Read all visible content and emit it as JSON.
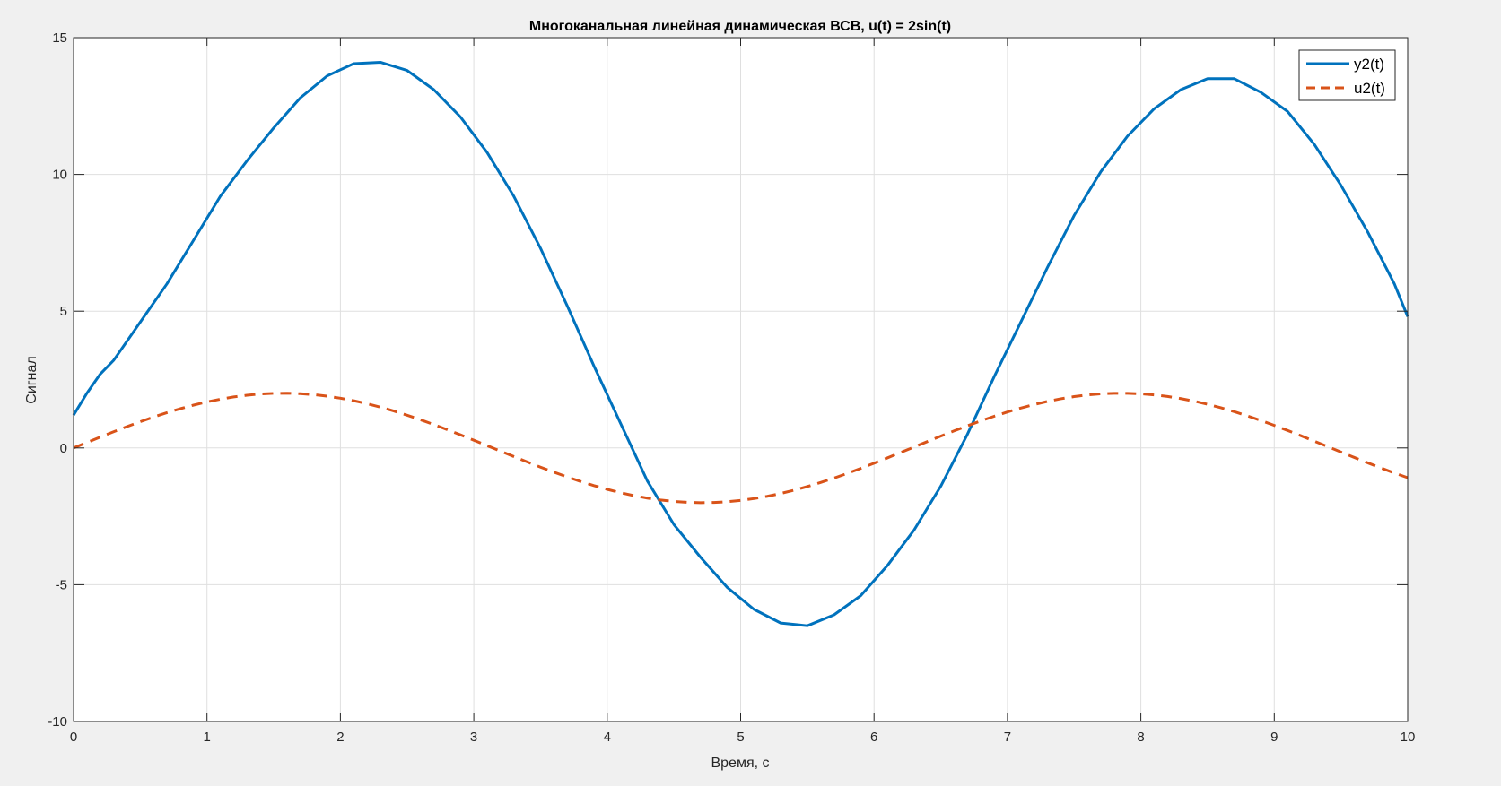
{
  "chart_data": {
    "type": "line",
    "title": "Многоканальная линейная динамическая ВСВ, u(t) = 2sin(t)",
    "xlabel": "Время, с",
    "ylabel": "Сигнал",
    "xlim": [
      0,
      10
    ],
    "ylim": [
      -10,
      15
    ],
    "x_ticks": [
      "0",
      "1",
      "2",
      "3",
      "4",
      "5",
      "6",
      "7",
      "8",
      "9",
      "10"
    ],
    "y_ticks": [
      "-10",
      "-5",
      "0",
      "5",
      "10",
      "15"
    ],
    "grid": true,
    "legend_position": "top-right",
    "series": [
      {
        "name": "y2(t)",
        "color": "#0072BD",
        "line_style": "solid",
        "x": [
          0,
          0.1,
          0.2,
          0.3,
          0.5,
          0.7,
          0.9,
          1.1,
          1.3,
          1.5,
          1.7,
          1.9,
          2.1,
          2.3,
          2.5,
          2.7,
          2.9,
          3.1,
          3.3,
          3.5,
          3.7,
          3.9,
          4.1,
          4.3,
          4.5,
          4.7,
          4.9,
          5.1,
          5.3,
          5.5,
          5.7,
          5.9,
          6.1,
          6.3,
          6.5,
          6.7,
          6.9,
          7.1,
          7.3,
          7.5,
          7.7,
          7.9,
          8.1,
          8.3,
          8.5,
          8.7,
          8.9,
          9.1,
          9.3,
          9.5,
          9.7,
          9.9,
          10
        ],
        "y": [
          1.2,
          2.0,
          2.7,
          3.2,
          4.6,
          6.0,
          7.6,
          9.2,
          10.5,
          11.7,
          12.8,
          13.6,
          14.05,
          14.1,
          13.8,
          13.1,
          12.1,
          10.8,
          9.2,
          7.3,
          5.2,
          3.0,
          0.9,
          -1.2,
          -2.8,
          -4.0,
          -5.1,
          -5.9,
          -6.4,
          -6.5,
          -6.1,
          -5.4,
          -4.3,
          -3.0,
          -1.4,
          0.5,
          2.6,
          4.6,
          6.6,
          8.5,
          10.1,
          11.4,
          12.4,
          13.1,
          13.5,
          13.5,
          13.0,
          12.3,
          11.1,
          9.6,
          7.9,
          6.0,
          4.8
        ]
      },
      {
        "name": "u2(t)",
        "color": "#D95319",
        "line_style": "dashed",
        "function": "2sin(t)",
        "x_step": 0.1
      }
    ]
  }
}
